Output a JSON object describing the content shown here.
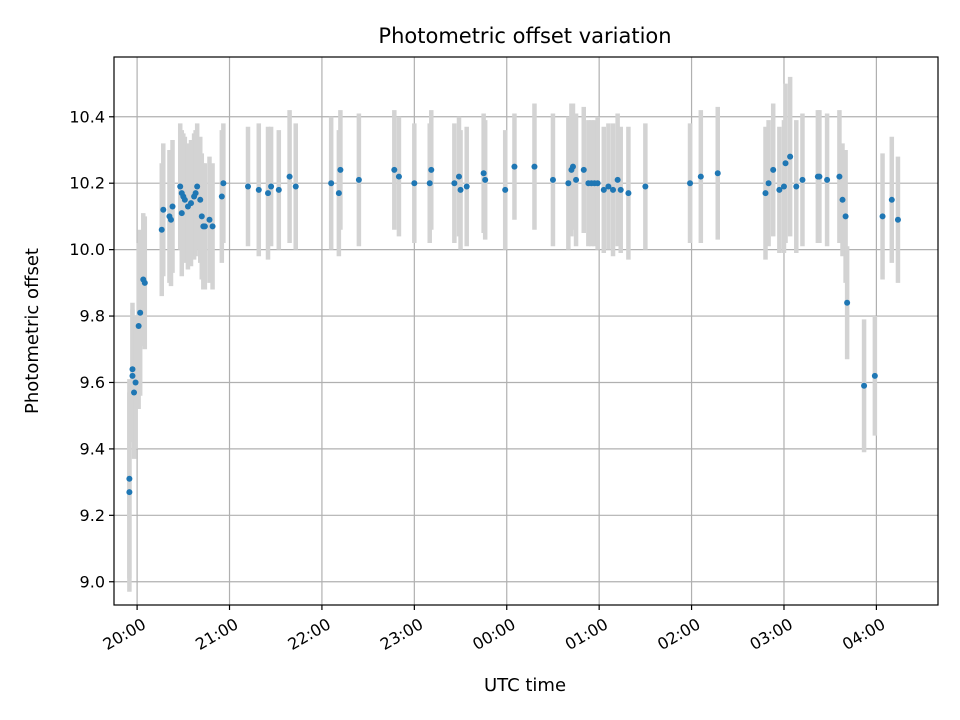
{
  "chart_data": {
    "type": "scatter",
    "title": "Photometric offset variation",
    "xlabel": "UTC time",
    "ylabel": "Photometric offset",
    "grid": true,
    "xlim": [
      "19:45",
      "04:40"
    ],
    "ylim": [
      8.93,
      10.58
    ],
    "x_ticks": [
      "20:00",
      "21:00",
      "22:00",
      "23:00",
      "00:00",
      "01:00",
      "02:00",
      "03:00",
      "04:00"
    ],
    "y_ticks": [
      9.0,
      9.2,
      9.4,
      9.6,
      9.8,
      10.0,
      10.2,
      10.4
    ],
    "colors": {
      "points": "#1f77b4",
      "error_bars": "#d3d3d3",
      "grid": "#b0b0b0"
    },
    "series": [
      {
        "x": [
          "19:55",
          "19:55",
          "19:57",
          "19:57",
          "19:58",
          "19:59",
          "20:01",
          "20:02",
          "20:04",
          "20:05",
          "20:16",
          "20:17",
          "20:21",
          "20:22",
          "20:23",
          "20:28",
          "20:29",
          "20:29",
          "20:30",
          "20:31",
          "20:33",
          "20:35",
          "20:37",
          "20:38",
          "20:39",
          "20:41",
          "20:42",
          "20:43",
          "20:44",
          "20:47",
          "20:49",
          "20:55",
          "20:56",
          "21:12",
          "21:19",
          "21:25",
          "21:27",
          "21:32",
          "21:39",
          "21:43",
          "22:06",
          "22:11",
          "22:12",
          "22:24",
          "22:47",
          "22:50",
          "23:00",
          "23:10",
          "23:11",
          "23:26",
          "23:29",
          "23:30",
          "23:34",
          "23:45",
          "23:46",
          "23:59",
          "24:05",
          "24:18",
          "24:30",
          "24:40",
          "24:42",
          "24:43",
          "24:45",
          "24:50",
          "24:53",
          "24:55",
          "24:57",
          "24:59",
          "25:03",
          "25:06",
          "25:09",
          "25:12",
          "25:14",
          "25:19",
          "25:30",
          "25:59",
          "26:06",
          "26:17",
          "26:48",
          "26:50",
          "26:53",
          "26:57",
          "27:00",
          "27:01",
          "27:04",
          "27:08",
          "27:12",
          "27:22",
          "27:23",
          "27:28",
          "27:36",
          "27:38",
          "27:40",
          "27:41",
          "27:52",
          "27:59",
          "28:04",
          "28:10",
          "28:14"
        ],
        "y": [
          9.31,
          9.27,
          9.62,
          9.64,
          9.57,
          9.6,
          9.77,
          9.81,
          9.91,
          9.9,
          10.06,
          10.12,
          10.1,
          10.09,
          10.13,
          10.19,
          10.17,
          10.11,
          10.16,
          10.15,
          10.13,
          10.14,
          10.16,
          10.17,
          10.19,
          10.15,
          10.1,
          10.07,
          10.07,
          10.09,
          10.07,
          10.16,
          10.2,
          10.19,
          10.18,
          10.17,
          10.19,
          10.18,
          10.22,
          10.19,
          10.2,
          10.17,
          10.24,
          10.21,
          10.24,
          10.22,
          10.2,
          10.2,
          10.24,
          10.2,
          10.22,
          10.18,
          10.19,
          10.23,
          10.21,
          10.18,
          10.25,
          10.25,
          10.21,
          10.2,
          10.24,
          10.25,
          10.21,
          10.24,
          10.2,
          10.2,
          10.2,
          10.2,
          10.18,
          10.19,
          10.18,
          10.21,
          10.18,
          10.17,
          10.19,
          10.2,
          10.22,
          10.23,
          10.17,
          10.2,
          10.24,
          10.18,
          10.19,
          10.26,
          10.28,
          10.19,
          10.21,
          10.22,
          10.22,
          10.21,
          10.22,
          10.15,
          10.1,
          9.84,
          9.59,
          9.62,
          10.1,
          10.15,
          10.09
        ],
        "err": [
          0.3,
          0.3,
          0.2,
          0.2,
          0.2,
          0.2,
          0.25,
          0.25,
          0.2,
          0.2,
          0.2,
          0.2,
          0.2,
          0.2,
          0.2,
          0.19,
          0.19,
          0.19,
          0.19,
          0.19,
          0.19,
          0.19,
          0.19,
          0.19,
          0.19,
          0.19,
          0.19,
          0.19,
          0.19,
          0.19,
          0.19,
          0.2,
          0.18,
          0.18,
          0.2,
          0.2,
          0.18,
          0.18,
          0.2,
          0.19,
          0.2,
          0.19,
          0.18,
          0.2,
          0.18,
          0.18,
          0.18,
          0.18,
          0.18,
          0.18,
          0.18,
          0.18,
          0.18,
          0.18,
          0.18,
          0.18,
          0.16,
          0.19,
          0.2,
          0.2,
          0.2,
          0.19,
          0.2,
          0.19,
          0.19,
          0.19,
          0.19,
          0.2,
          0.19,
          0.19,
          0.2,
          0.2,
          0.19,
          0.2,
          0.19,
          0.18,
          0.2,
          0.2,
          0.2,
          0.19,
          0.2,
          0.19,
          0.2,
          0.24,
          0.24,
          0.2,
          0.2,
          0.2,
          0.2,
          0.2,
          0.2,
          0.17,
          0.2,
          0.17,
          0.2,
          0.18,
          0.19,
          0.19,
          0.19
        ]
      }
    ]
  }
}
